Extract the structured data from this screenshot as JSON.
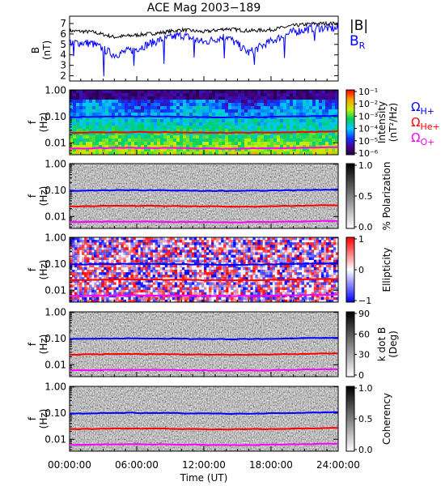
{
  "title": "ACE Mag 2003−189",
  "x_axis": {
    "label": "Time (UT)",
    "ticks": [
      "00:00:00",
      "06:00:00",
      "12:00:00",
      "18:00:00",
      "24:00:00"
    ]
  },
  "legend": {
    "B_total": "|B|",
    "B_R": "B",
    "B_R_sub": "R",
    "omega": "Ω",
    "H_plus": "H+",
    "He_plus": "He+",
    "O_plus": "O+"
  },
  "colors": {
    "B_total": "#000000",
    "B_R": "#0000ff",
    "H_plus": "#0000ff",
    "He_plus": "#ff0000",
    "O_plus": "#ff00ff"
  },
  "chart_data": [
    {
      "type": "line",
      "panel": "magnetic-field",
      "ylabel": "B",
      "yunit": "(nT)",
      "ylim": [
        1.5,
        7.7
      ],
      "yticks": [
        "2",
        "3",
        "4",
        "5",
        "6",
        "7"
      ],
      "x": [
        0,
        2,
        4,
        6,
        8,
        10,
        12,
        14,
        16,
        18,
        20,
        22,
        24
      ],
      "series": [
        {
          "name": "|B|",
          "values": [
            6.3,
            6.2,
            5.7,
            5.9,
            6.1,
            6.4,
            6.2,
            6.5,
            6.3,
            6.4,
            6.8,
            7.0,
            7.0
          ]
        },
        {
          "name": "B_R",
          "values": [
            5.2,
            5.1,
            4.0,
            4.6,
            5.4,
            5.9,
            5.2,
            5.8,
            4.2,
            5.3,
            6.2,
            6.6,
            6.5
          ]
        }
      ]
    },
    {
      "type": "heatmap",
      "panel": "intensity",
      "ylabel": "f",
      "yunit": "(Hz)",
      "yticks": [
        "1.00",
        "0.10",
        "0.01"
      ],
      "colorbar_label": "Intensity",
      "colorbar_unit": "(nT²/Hz)",
      "colorbar_ticks": [
        "10⁻¹",
        "10⁻²",
        "10⁻³",
        "10⁻⁴",
        "10⁻⁵",
        "10⁻⁶"
      ],
      "colormap": "rainbow",
      "gyrofrequency_lines": {
        "H_plus": 0.095,
        "He_plus": 0.024,
        "O_plus": 0.006
      }
    },
    {
      "type": "heatmap",
      "panel": "polarization",
      "ylabel": "f",
      "yunit": "(Hz)",
      "yticks": [
        "1.00",
        "0.10",
        "0.01"
      ],
      "colorbar_label": "% Polarization",
      "colorbar_ticks": [
        "1.0",
        "0.5",
        "0.0"
      ],
      "colormap": "gray",
      "gyrofrequency_lines": {
        "H_plus": 0.095,
        "He_plus": 0.024,
        "O_plus": 0.006
      }
    },
    {
      "type": "heatmap",
      "panel": "ellipticity",
      "ylabel": "f",
      "yunit": "(Hz)",
      "yticks": [
        "1.00",
        "0.10",
        "0.01"
      ],
      "colorbar_label": "Ellipticity",
      "colorbar_ticks": [
        "1",
        "0",
        "−1"
      ],
      "colormap": "blue-white-red",
      "gyrofrequency_lines": {
        "H_plus": 0.095,
        "He_plus": 0.024,
        "O_plus": 0.006
      }
    },
    {
      "type": "heatmap",
      "panel": "k-dot-b",
      "ylabel": "f",
      "yunit": "(Hz)",
      "yticks": [
        "1.00",
        "0.10",
        "0.01"
      ],
      "colorbar_label": "k dot B",
      "colorbar_unit": "(Deg)",
      "colorbar_ticks": [
        "90",
        "60",
        "30",
        "0"
      ],
      "colormap": "gray",
      "gyrofrequency_lines": {
        "H_plus": 0.095,
        "He_plus": 0.024,
        "O_plus": 0.006
      }
    },
    {
      "type": "heatmap",
      "panel": "coherency",
      "ylabel": "f",
      "yunit": "(Hz)",
      "yticks": [
        "1.00",
        "0.10",
        "0.01"
      ],
      "colorbar_label": "Coherency",
      "colorbar_ticks": [
        "1.0",
        "0.5",
        "0.0"
      ],
      "colormap": "gray",
      "gyrofrequency_lines": {
        "H_plus": 0.095,
        "He_plus": 0.024,
        "O_plus": 0.006
      }
    }
  ]
}
